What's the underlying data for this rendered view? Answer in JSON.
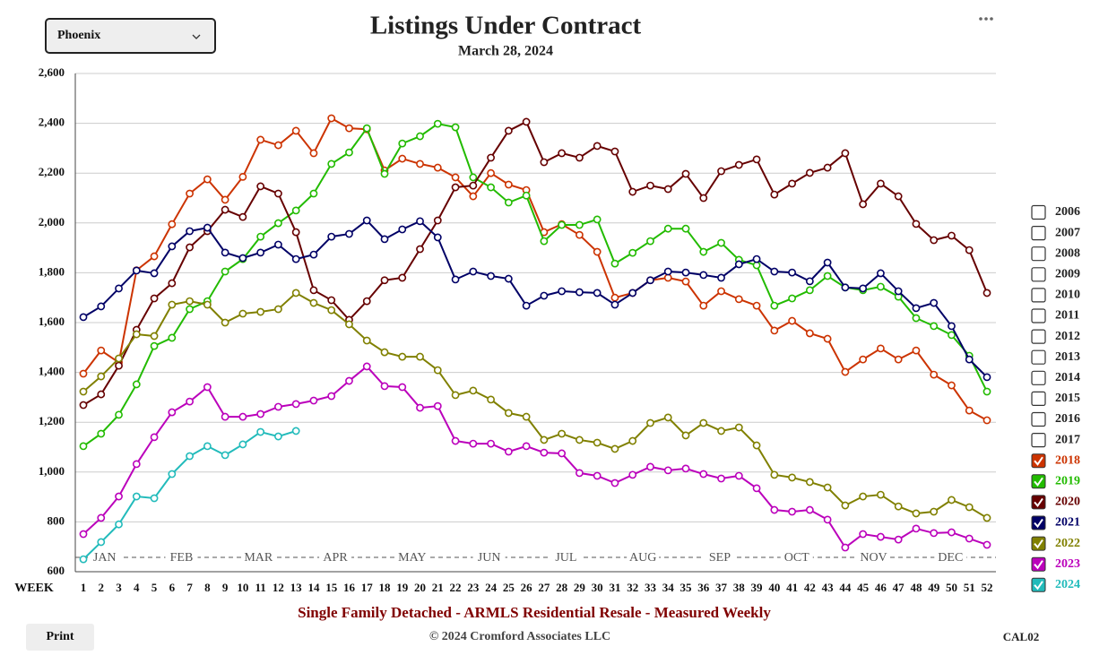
{
  "controls": {
    "market": "Phoenix",
    "print": "Print"
  },
  "footer": {
    "copyright": "© 2024 Cromford Associates LLC",
    "code": "CAL02"
  },
  "chart_data": {
    "type": "line",
    "title": "Listings Under Contract",
    "subtitle": "March 28, 2024",
    "note": "Single Family Detached - ARMLS Residential Resale - Measured Weekly",
    "x_label": "WEEK",
    "x": [
      1,
      2,
      3,
      4,
      5,
      6,
      7,
      8,
      9,
      10,
      11,
      12,
      13,
      14,
      15,
      16,
      17,
      18,
      19,
      20,
      21,
      22,
      23,
      24,
      25,
      26,
      27,
      28,
      29,
      30,
      31,
      32,
      33,
      34,
      35,
      36,
      37,
      38,
      39,
      40,
      41,
      42,
      43,
      44,
      45,
      46,
      47,
      48,
      49,
      50,
      51,
      52
    ],
    "xlim": [
      1,
      52
    ],
    "month_labels": [
      "JAN",
      "FEB",
      "MAR",
      "APR",
      "MAY",
      "JUN",
      "JUL",
      "AUG",
      "SEP",
      "OCT",
      "NOV",
      "DEC"
    ],
    "ylim": [
      600,
      2600
    ],
    "yticks": [
      600,
      800,
      {
        "value": 1000,
        "label": "1,000"
      },
      {
        "value": 1200,
        "label": "1,200"
      },
      {
        "value": 1400,
        "label": "1,400"
      },
      {
        "value": 1600,
        "label": "1,600"
      },
      {
        "value": 1800,
        "label": "1,800"
      },
      {
        "value": 2000,
        "label": "2,000"
      },
      {
        "value": 2200,
        "label": "2,200"
      },
      {
        "value": 2400,
        "label": "2,400"
      },
      {
        "value": 2600,
        "label": "2,600"
      }
    ],
    "grid": true,
    "legend_unchecked": [
      "2006",
      "2007",
      "2008",
      "2009",
      "2010",
      "2011",
      "2012",
      "2013",
      "2014",
      "2015",
      "2016",
      "2017"
    ],
    "series": [
      {
        "name": "2018",
        "color": "#cc3300",
        "values": [
          1395,
          1488,
          1440,
          1810,
          1866,
          1995,
          2118,
          2175,
          2093,
          2185,
          2334,
          2312,
          2370,
          2280,
          2420,
          2380,
          2376,
          2211,
          2258,
          2237,
          2222,
          2183,
          2107,
          2200,
          2154,
          2132,
          1963,
          1995,
          1952,
          1884,
          1700,
          1719,
          1770,
          1780,
          1765,
          1668,
          1726,
          1694,
          1668,
          1568,
          1607,
          1557,
          1535,
          1402,
          1452,
          1496,
          1452,
          1488,
          1391,
          1348,
          1247,
          1208
        ]
      },
      {
        "name": "2019",
        "color": "#22bb00",
        "values": [
          1104,
          1154,
          1230,
          1352,
          1506,
          1539,
          1654,
          1686,
          1805,
          1855,
          1945,
          1999,
          2050,
          2118,
          2237,
          2283,
          2380,
          2197,
          2319,
          2348,
          2398,
          2384,
          2183,
          2143,
          2082,
          2110,
          1927,
          1992,
          1992,
          2014,
          1837,
          1880,
          1927,
          1977,
          1977,
          1884,
          1920,
          1852,
          1830,
          1668,
          1697,
          1730,
          1787,
          1741,
          1730,
          1744,
          1704,
          1618,
          1586,
          1550,
          1467,
          1323
        ]
      },
      {
        "name": "2020",
        "color": "#660000",
        "values": [
          1269,
          1312,
          1427,
          1571,
          1697,
          1758,
          1902,
          1967,
          2053,
          2024,
          2147,
          2118,
          1963,
          1730,
          1690,
          1611,
          1686,
          1770,
          1780,
          1895,
          2010,
          2143,
          2150,
          2262,
          2370,
          2406,
          2244,
          2280,
          2262,
          2309,
          2287,
          2125,
          2150,
          2136,
          2197,
          2100,
          2208,
          2233,
          2255,
          2114,
          2158,
          2201,
          2222,
          2280,
          2075,
          2158,
          2107,
          1996,
          1931,
          1949,
          1891,
          1719
        ]
      },
      {
        "name": "2021",
        "color": "#000066",
        "values": [
          1622,
          1665,
          1737,
          1809,
          1798,
          1906,
          1967,
          1981,
          1881,
          1859,
          1881,
          1913,
          1855,
          1873,
          1945,
          1956,
          2010,
          1935,
          1974,
          2007,
          1942,
          1773,
          1805,
          1787,
          1776,
          1668,
          1708,
          1726,
          1722,
          1719,
          1672,
          1719,
          1770,
          1805,
          1801,
          1791,
          1780,
          1834,
          1855,
          1805,
          1801,
          1766,
          1841,
          1741,
          1737,
          1798,
          1726,
          1658,
          1679,
          1586,
          1452,
          1381
        ]
      },
      {
        "name": "2022",
        "color": "#808000",
        "values": [
          1323,
          1384,
          1456,
          1553,
          1546,
          1672,
          1686,
          1672,
          1600,
          1636,
          1643,
          1654,
          1719,
          1679,
          1650,
          1593,
          1528,
          1481,
          1463,
          1463,
          1409,
          1309,
          1327,
          1291,
          1237,
          1222,
          1129,
          1154,
          1129,
          1118,
          1093,
          1125,
          1197,
          1219,
          1147,
          1197,
          1165,
          1179,
          1107,
          989,
          978,
          960,
          938,
          866,
          902,
          909,
          862,
          834,
          841,
          888,
          859,
          816
        ]
      },
      {
        "name": "2023",
        "color": "#bb00bb",
        "values": [
          751,
          816,
          902,
          1032,
          1140,
          1240,
          1283,
          1341,
          1222,
          1222,
          1233,
          1262,
          1273,
          1287,
          1305,
          1366,
          1424,
          1345,
          1341,
          1258,
          1265,
          1125,
          1114,
          1114,
          1082,
          1104,
          1078,
          1075,
          996,
          985,
          956,
          989,
          1021,
          1007,
          1014,
          992,
          974,
          985,
          935,
          848,
          841,
          848,
          809,
          697,
          751,
          740,
          729,
          773,
          755,
          758,
          733,
          708
        ]
      },
      {
        "name": "2024",
        "color": "#22bbbb",
        "values": [
          650,
          719,
          790,
          902,
          895,
          992,
          1064,
          1104,
          1068,
          1111,
          1161,
          1143,
          1165,
          null,
          null,
          null,
          null,
          null,
          null,
          null,
          null,
          null,
          null,
          null,
          null,
          null,
          null,
          null,
          null,
          null,
          null,
          null,
          null,
          null,
          null,
          null,
          null,
          null,
          null,
          null,
          null,
          null,
          null,
          null,
          null,
          null,
          null,
          null,
          null,
          null,
          null,
          null
        ]
      }
    ]
  }
}
